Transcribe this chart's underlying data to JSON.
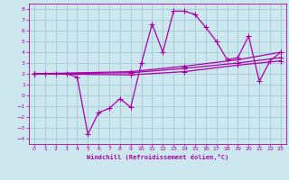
{
  "xlabel": "Windchill (Refroidissement éolien,°C)",
  "bg_color": "#cce8ee",
  "grid_color": "#a0c8d8",
  "line_color": "#aa00aa",
  "xlim": [
    -0.5,
    23.5
  ],
  "ylim": [
    -4.5,
    8.5
  ],
  "xticks": [
    0,
    1,
    2,
    3,
    4,
    5,
    6,
    7,
    8,
    9,
    10,
    11,
    12,
    13,
    14,
    15,
    16,
    17,
    18,
    19,
    20,
    21,
    22,
    23
  ],
  "yticks": [
    -4,
    -3,
    -2,
    -1,
    0,
    1,
    2,
    3,
    4,
    5,
    6,
    7,
    8
  ],
  "main_x": [
    0,
    1,
    2,
    3,
    4,
    5,
    6,
    7,
    8,
    9,
    10,
    11,
    12,
    13,
    14,
    15,
    16,
    17,
    18,
    19,
    20,
    21,
    22,
    23
  ],
  "main_y": [
    2.0,
    2.0,
    2.0,
    2.0,
    1.7,
    -3.6,
    -1.6,
    -1.2,
    -0.3,
    -1.1,
    3.0,
    6.6,
    4.0,
    7.8,
    7.8,
    7.5,
    6.3,
    5.0,
    3.3,
    3.5,
    5.5,
    1.3,
    3.2,
    4.0
  ],
  "line1_x": [
    0,
    9,
    14,
    19,
    23
  ],
  "line1_y": [
    2.0,
    2.1,
    2.5,
    3.0,
    3.5
  ],
  "line2_x": [
    0,
    9,
    14,
    19,
    23
  ],
  "line2_y": [
    2.0,
    2.2,
    2.7,
    3.3,
    4.0
  ],
  "line3_x": [
    0,
    9,
    14,
    19,
    23
  ],
  "line3_y": [
    2.0,
    1.9,
    2.2,
    2.8,
    3.2
  ]
}
